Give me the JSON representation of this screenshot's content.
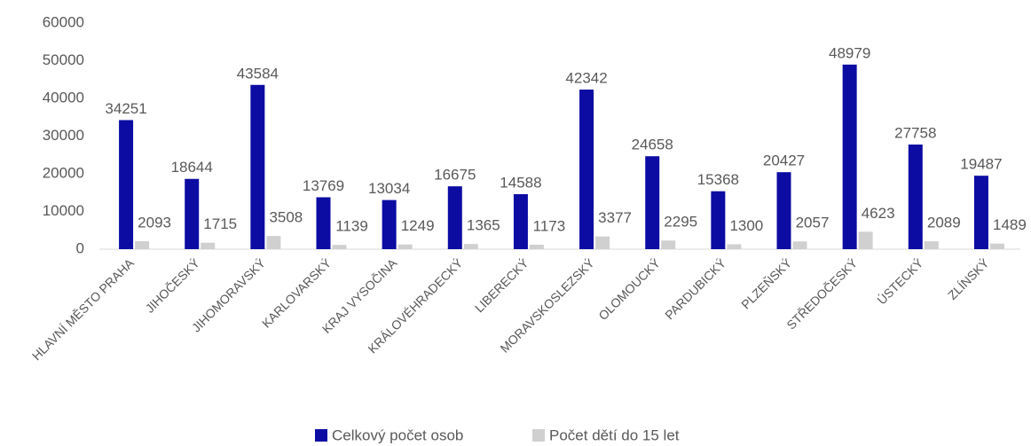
{
  "chart_data": {
    "type": "bar",
    "categories": [
      "HLAVNÍ MĚSTO PRAHA",
      "JIHOČESKÝ",
      "JIHOMORAVSKÝ",
      "KARLOVARSKÝ",
      "KRAJ VYSOČINA",
      "KRÁLOVÉHRADECKÝ",
      "LIBERECKÝ",
      "MORAVSKOSLEZSKÝ",
      "OLOMOUCKÝ",
      "PARDUBICKÝ",
      "PLZEŇSKÝ",
      "STŘEDOČESKÝ",
      "ÚSTECKÝ",
      "ZLÍNSKÝ"
    ],
    "series": [
      {
        "name": "Celkový počet osob",
        "color": "#0c0ca3",
        "values": [
          34251,
          18644,
          43584,
          13769,
          13034,
          16675,
          14588,
          42342,
          24658,
          15368,
          20427,
          48979,
          27758,
          19487
        ]
      },
      {
        "name": "Počet dětí do 15 let",
        "color": "#d0d0d0",
        "values": [
          2093,
          1715,
          3508,
          1139,
          1249,
          1365,
          1173,
          3377,
          2295,
          1300,
          2057,
          4623,
          2089,
          1489
        ]
      }
    ],
    "ylim": [
      0,
      60000
    ],
    "yticks": [
      0,
      10000,
      20000,
      30000,
      40000,
      50000,
      60000
    ],
    "grid": false,
    "legend": "bottom"
  }
}
